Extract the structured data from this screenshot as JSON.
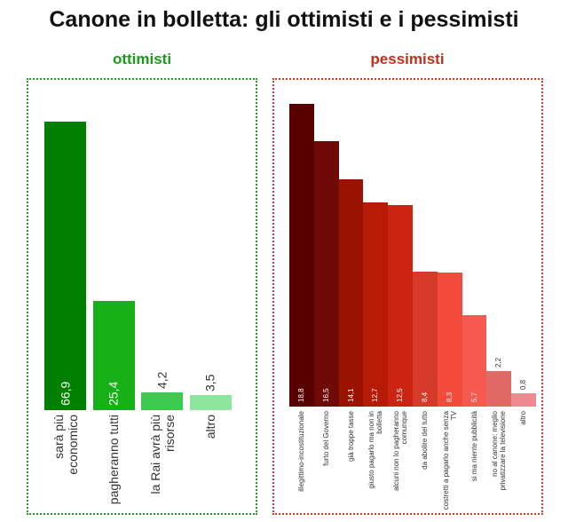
{
  "title": "Canone in bolletta: gli ottimisti e i pessimisti",
  "chart_data": [
    {
      "type": "bar",
      "title": "ottimisti",
      "title_color": "#1a9a1a",
      "border_color": "#2a9a2a",
      "categories": [
        "sarà più economico",
        "pagheranno tutti",
        "la Rai avrà più risorse",
        "altro"
      ],
      "values": [
        66.9,
        25.4,
        4.2,
        3.5
      ],
      "value_labels": [
        "66,9",
        "25,4",
        "4,2",
        "3,5"
      ],
      "colors": [
        "#008000",
        "#17b017",
        "#3ccb4f",
        "#8ee59c"
      ]
    },
    {
      "type": "bar",
      "title": "pessimisti",
      "title_color": "#c0301a",
      "border_color": "#c8402a",
      "categories": [
        "illegittimo-incostituzionale",
        "furto del Governo",
        "già troppe tasse",
        "giusto pagarlo ma non in bolletta",
        "alcuni non lo pagheranno comunque",
        "da abolire del tutto",
        "costretti a pagarlo anche senza TV",
        "si ma niente pubblicità",
        "no al canone: meglio privatizzare la televisione",
        "altro"
      ],
      "values": [
        18.8,
        16.5,
        14.1,
        12.7,
        12.5,
        8.4,
        8.3,
        5.7,
        2.2,
        0.8
      ],
      "value_labels": [
        "18,8",
        "16,5",
        "14,1",
        "12,7",
        "12,5",
        "8,4",
        "8,3",
        "5,7",
        "2,2",
        "0,8"
      ],
      "colors": [
        "#560000",
        "#6e0905",
        "#9a1300",
        "#b81b05",
        "#cc2412",
        "#d53a2a",
        "#f24b3c",
        "#f65a4e",
        "#e26a66",
        "#f08890"
      ]
    }
  ]
}
